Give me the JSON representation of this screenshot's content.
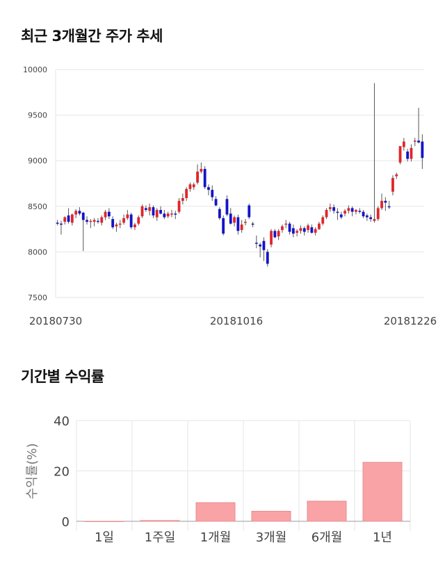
{
  "section_titles": {
    "trend": "최근 3개월간 주가 추세",
    "returns": "기간별 수익률"
  },
  "colors": {
    "up": "#e0262a",
    "down": "#1414c8",
    "bar_fill": "#f9a3a6",
    "bar_stroke": "#e88c8f",
    "grid": "#e6e6e6"
  },
  "chart_data": [
    {
      "type": "candlestick",
      "title": "최근 3개월간 주가 추세",
      "ylim": [
        7500,
        10000
      ],
      "yticks": [
        "7500",
        "8000",
        "8500",
        "9000",
        "9500",
        "10000"
      ],
      "xticks": [
        "20180730",
        "20181016",
        "20181226"
      ],
      "grid": true,
      "ohlc": [
        [
          8320,
          8350,
          8290,
          8310
        ],
        [
          8310,
          8340,
          8190,
          8300
        ],
        [
          8330,
          8390,
          8300,
          8380
        ],
        [
          8400,
          8480,
          8310,
          8330
        ],
        [
          8320,
          8420,
          8290,
          8410
        ],
        [
          8410,
          8470,
          8370,
          8450
        ],
        [
          8450,
          8490,
          8400,
          8420
        ],
        [
          8430,
          8440,
          8010,
          8350
        ],
        [
          8350,
          8390,
          8300,
          8330
        ],
        [
          8330,
          8360,
          8260,
          8340
        ],
        [
          8330,
          8370,
          8280,
          8350
        ],
        [
          8340,
          8370,
          8310,
          8330
        ],
        [
          8320,
          8400,
          8290,
          8380
        ],
        [
          8380,
          8460,
          8350,
          8440
        ],
        [
          8440,
          8480,
          8360,
          8390
        ],
        [
          8360,
          8390,
          8250,
          8270
        ],
        [
          8280,
          8320,
          8220,
          8300
        ],
        [
          8300,
          8350,
          8260,
          8310
        ],
        [
          8320,
          8410,
          8300,
          8370
        ],
        [
          8370,
          8460,
          8350,
          8410
        ],
        [
          8410,
          8430,
          8250,
          8270
        ],
        [
          8270,
          8320,
          8240,
          8300
        ],
        [
          8310,
          8400,
          8290,
          8380
        ],
        [
          8390,
          8520,
          8370,
          8500
        ],
        [
          8480,
          8510,
          8440,
          8460
        ],
        [
          8450,
          8530,
          8400,
          8490
        ],
        [
          8490,
          8510,
          8370,
          8400
        ],
        [
          8380,
          8480,
          8340,
          8460
        ],
        [
          8460,
          8500,
          8410,
          8420
        ],
        [
          8420,
          8460,
          8360,
          8380
        ],
        [
          8390,
          8440,
          8370,
          8420
        ],
        [
          8420,
          8460,
          8380,
          8420
        ],
        [
          8420,
          8450,
          8360,
          8410
        ],
        [
          8440,
          8590,
          8420,
          8560
        ],
        [
          8560,
          8640,
          8520,
          8590
        ],
        [
          8590,
          8710,
          8560,
          8690
        ],
        [
          8690,
          8760,
          8660,
          8740
        ],
        [
          8710,
          8760,
          8680,
          8740
        ],
        [
          8760,
          8960,
          8740,
          8880
        ],
        [
          8880,
          8980,
          8860,
          8910
        ],
        [
          8910,
          8940,
          8690,
          8710
        ],
        [
          8710,
          8740,
          8620,
          8680
        ],
        [
          8680,
          8730,
          8560,
          8600
        ],
        [
          8580,
          8610,
          8500,
          8510
        ],
        [
          8470,
          8490,
          8350,
          8370
        ],
        [
          8370,
          8400,
          8180,
          8200
        ],
        [
          8580,
          8620,
          8390,
          8410
        ],
        [
          8420,
          8480,
          8300,
          8310
        ],
        [
          8320,
          8400,
          8280,
          8380
        ],
        [
          8380,
          8410,
          8190,
          8230
        ],
        [
          8240,
          8350,
          8210,
          8300
        ],
        [
          8320,
          8360,
          8290,
          8330
        ],
        [
          8510,
          8530,
          8360,
          8380
        ],
        [
          8310,
          8330,
          8270,
          8300
        ],
        [
          8100,
          8180,
          8040,
          8090
        ],
        [
          8080,
          8100,
          7940,
          8060
        ],
        [
          8120,
          8160,
          7900,
          8020
        ],
        [
          8000,
          8030,
          7840,
          7870
        ],
        [
          8080,
          8250,
          8050,
          8230
        ],
        [
          8230,
          8250,
          8150,
          8160
        ],
        [
          8170,
          8250,
          8130,
          8230
        ],
        [
          8240,
          8300,
          8210,
          8280
        ],
        [
          8300,
          8350,
          8260,
          8310
        ],
        [
          8310,
          8330,
          8190,
          8220
        ],
        [
          8260,
          8300,
          8160,
          8200
        ],
        [
          8210,
          8250,
          8170,
          8230
        ],
        [
          8230,
          8290,
          8200,
          8260
        ],
        [
          8260,
          8280,
          8180,
          8220
        ],
        [
          8240,
          8310,
          8210,
          8290
        ],
        [
          8270,
          8300,
          8200,
          8210
        ],
        [
          8210,
          8270,
          8180,
          8250
        ],
        [
          8250,
          8330,
          8240,
          8310
        ],
        [
          8310,
          8400,
          8290,
          8380
        ],
        [
          8380,
          8480,
          8360,
          8460
        ],
        [
          8470,
          8530,
          8440,
          8490
        ],
        [
          8490,
          8520,
          8420,
          8450
        ],
        [
          8440,
          8480,
          8350,
          8430
        ],
        [
          8410,
          8440,
          8360,
          8380
        ],
        [
          8420,
          8470,
          8390,
          8450
        ],
        [
          8450,
          8510,
          8420,
          8480
        ],
        [
          8480,
          8500,
          8390,
          8440
        ],
        [
          8440,
          8470,
          8410,
          8460
        ],
        [
          8450,
          8480,
          8420,
          8440
        ],
        [
          8440,
          8460,
          8370,
          8390
        ],
        [
          8400,
          8420,
          8340,
          8380
        ],
        [
          8380,
          8410,
          8330,
          8360
        ],
        [
          8340,
          9850,
          8320,
          8360
        ],
        [
          8360,
          8500,
          8340,
          8480
        ],
        [
          8480,
          8640,
          8460,
          8560
        ],
        [
          8560,
          8600,
          8450,
          8540
        ],
        [
          8500,
          8560,
          8470,
          8490
        ],
        [
          8660,
          8840,
          8620,
          8810
        ],
        [
          8830,
          8870,
          8800,
          8850
        ],
        [
          8980,
          9160,
          8960,
          9160
        ],
        [
          9150,
          9250,
          9110,
          9210
        ],
        [
          9100,
          9130,
          8990,
          9020
        ],
        [
          9020,
          9180,
          8990,
          9140
        ],
        [
          9220,
          9250,
          9160,
          9220
        ],
        [
          9220,
          9580,
          9190,
          9200
        ],
        [
          9210,
          9290,
          8910,
          9030
        ]
      ]
    },
    {
      "type": "bar",
      "title": "기간별 수익률",
      "categories": [
        "1일",
        "1주일",
        "1개월",
        "3개월",
        "6개월",
        "1년"
      ],
      "values": [
        0.0,
        0.3,
        7.4,
        4.0,
        8.0,
        23.4
      ],
      "ylabel": "수익률(%)",
      "ylim": [
        0,
        40
      ],
      "yticks": [
        "0",
        "20",
        "40"
      ],
      "grid": true
    }
  ]
}
